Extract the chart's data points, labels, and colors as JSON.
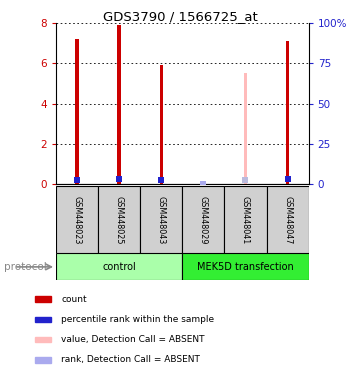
{
  "title": "GDS3790 / 1566725_at",
  "samples": [
    "GSM448023",
    "GSM448025",
    "GSM448043",
    "GSM448029",
    "GSM448041",
    "GSM448047"
  ],
  "bar_values": [
    7.2,
    7.9,
    5.9,
    0.0,
    5.5,
    7.1
  ],
  "bar_colors": [
    "#cc0000",
    "#cc0000",
    "#cc0000",
    null,
    "#ffbbbb",
    "#cc0000"
  ],
  "rank_values": [
    2.9,
    3.6,
    2.5,
    0.12,
    2.6,
    3.1
  ],
  "rank_colors": [
    "#2222cc",
    "#2222cc",
    "#2222cc",
    "#aaaaee",
    "#bbbbdd",
    "#2222cc"
  ],
  "absent_flags": [
    false,
    false,
    false,
    true,
    true,
    false
  ],
  "ylim_left": [
    0,
    8
  ],
  "ylim_right": [
    0,
    100
  ],
  "yticks_left": [
    0,
    2,
    4,
    6,
    8
  ],
  "yticklabels_right": [
    "0",
    "25",
    "50",
    "75",
    "100%"
  ],
  "protocol_groups": [
    {
      "label": "control",
      "indices": [
        0,
        1,
        2
      ],
      "color": "#aaffaa"
    },
    {
      "label": "MEK5D transfection",
      "indices": [
        3,
        4,
        5
      ],
      "color": "#33ee33"
    }
  ],
  "legend_items": [
    {
      "label": "count",
      "color": "#cc0000"
    },
    {
      "label": "percentile rank within the sample",
      "color": "#2222cc"
    },
    {
      "label": "value, Detection Call = ABSENT",
      "color": "#ffbbbb"
    },
    {
      "label": "rank, Detection Call = ABSENT",
      "color": "#aaaaee"
    }
  ],
  "background_color": "#ffffff",
  "bar_width": 0.08,
  "left_ylabel_color": "#cc0000",
  "right_ylabel_color": "#2222cc",
  "protocol_label": "protocol"
}
